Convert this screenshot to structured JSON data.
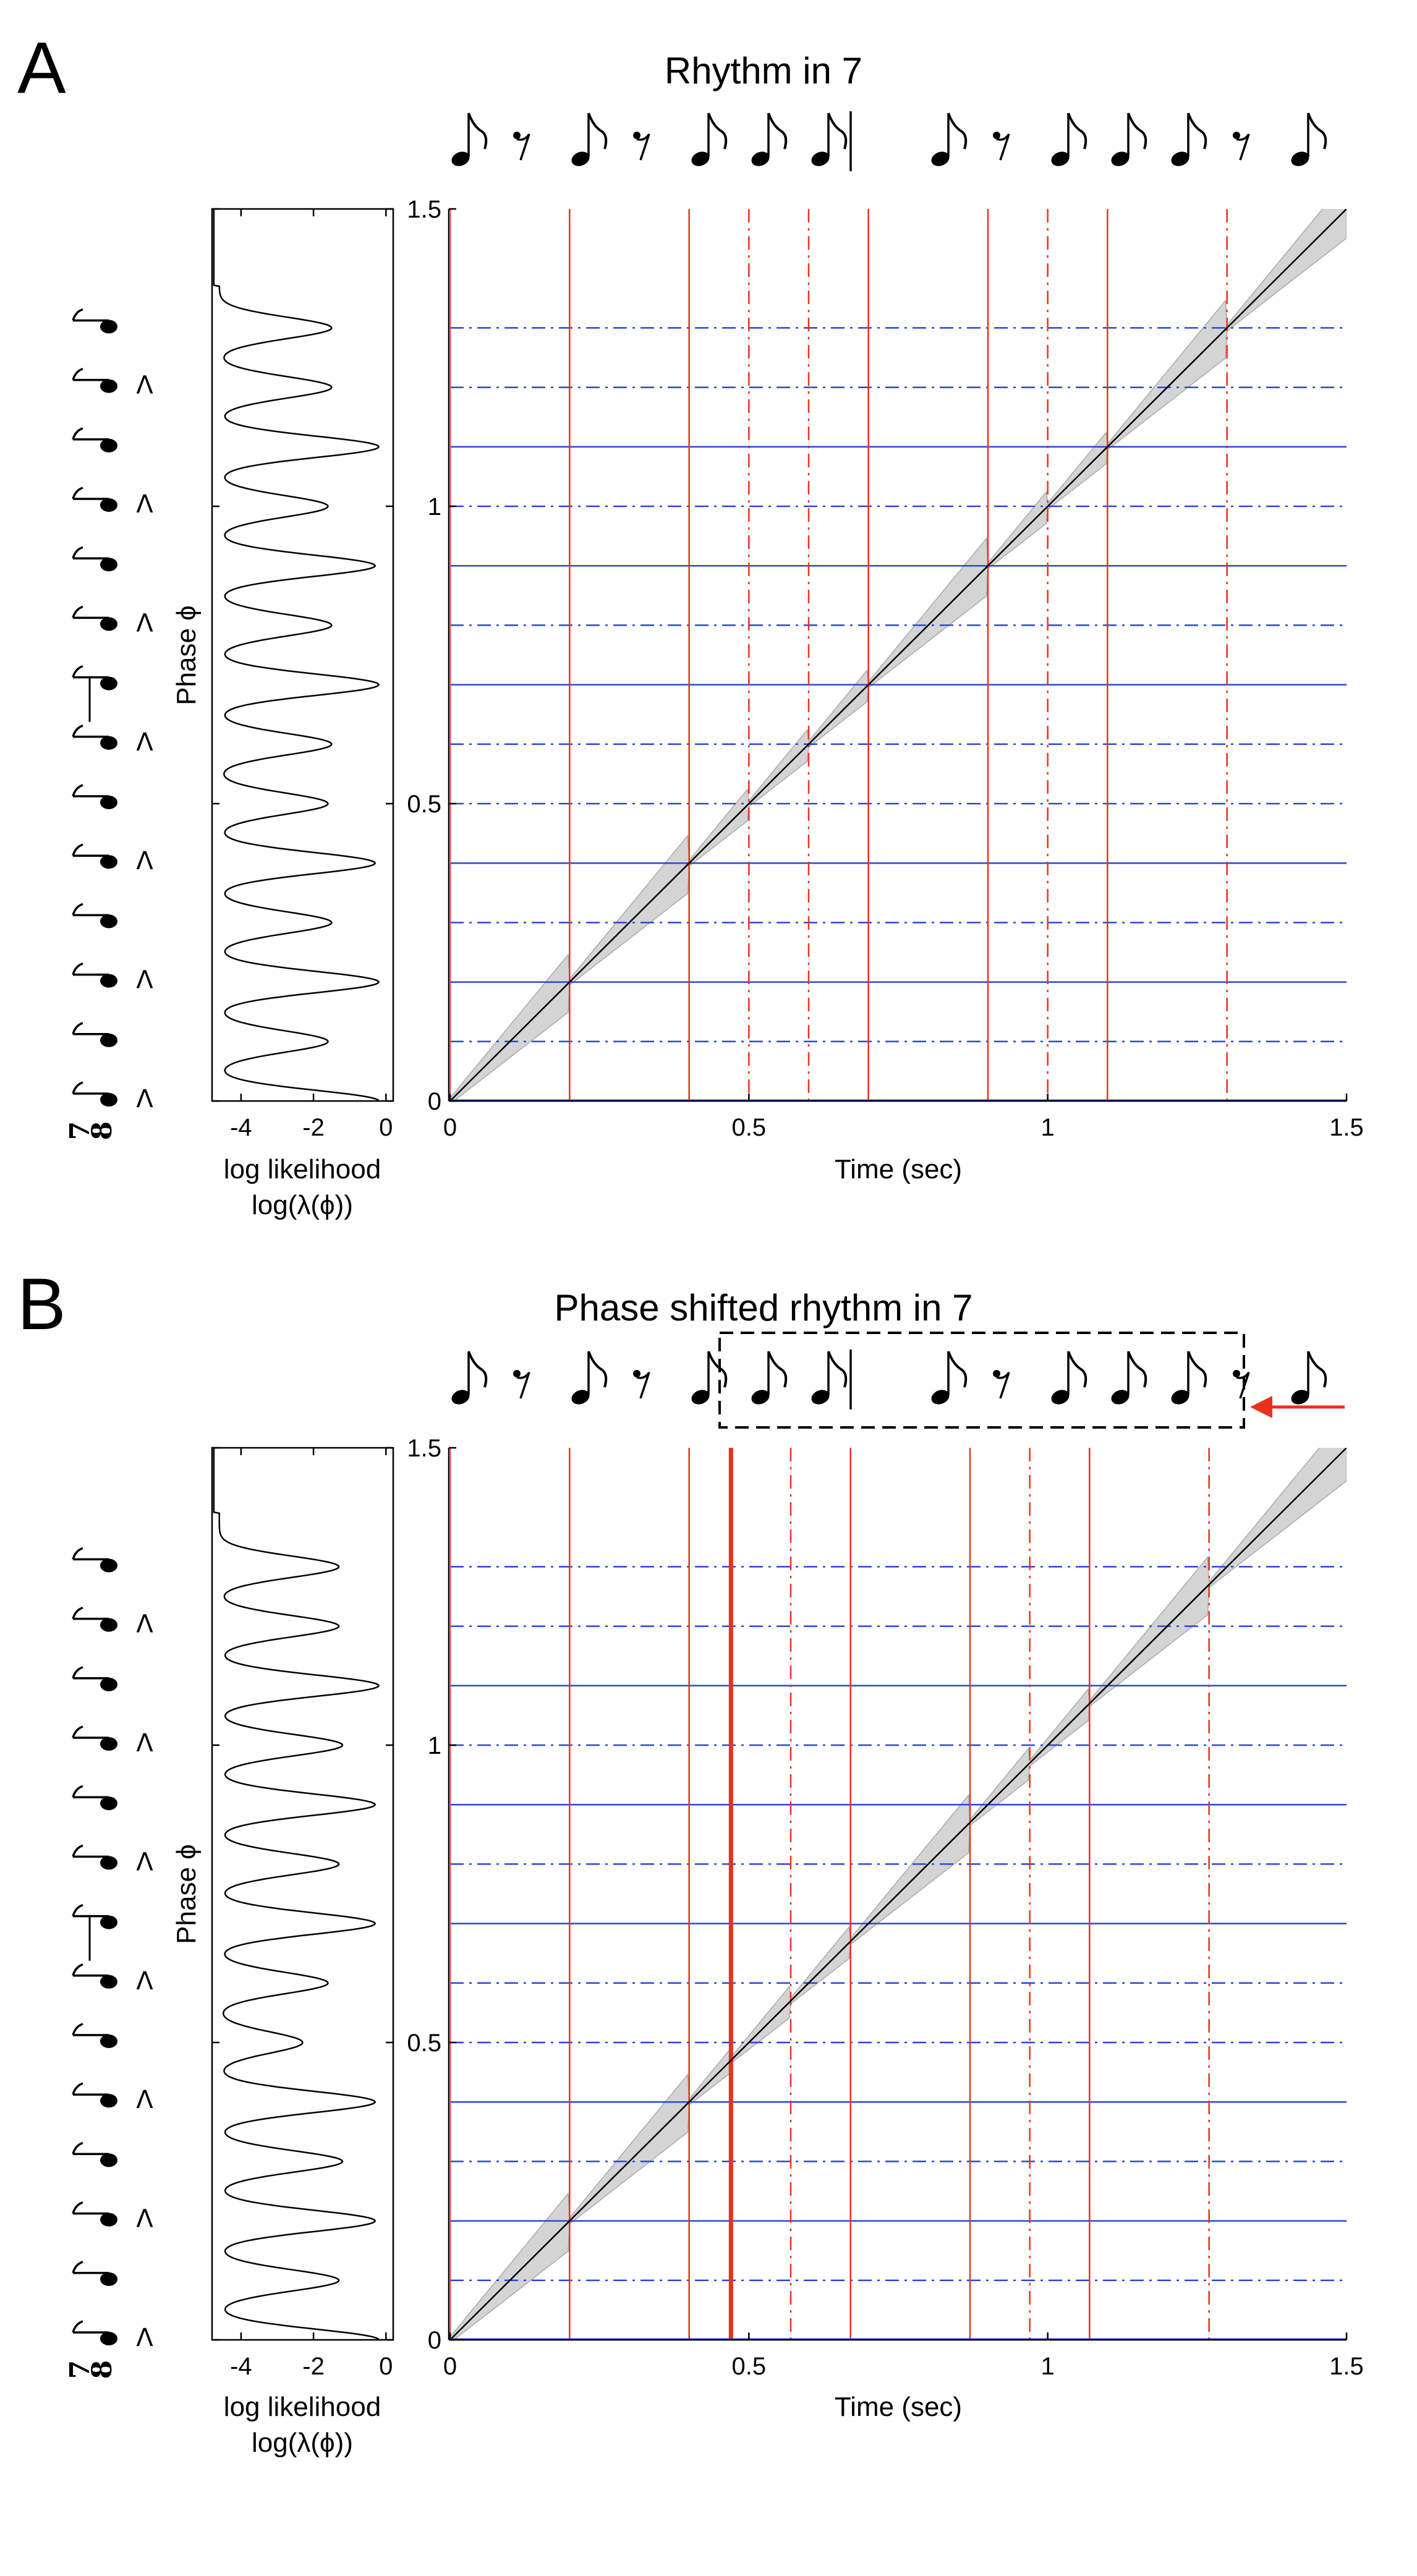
{
  "figure": {
    "panels": [
      {
        "letter": "A",
        "title": "Rhythm in 7",
        "notation": [
          "note",
          "rest",
          "note",
          "rest",
          "note",
          "note",
          "note",
          "bar",
          "note",
          "rest",
          "note",
          "note",
          "note",
          "rest",
          "note"
        ],
        "phase_side": {
          "time_signature": {
            "numerator": "7",
            "denominator": "8"
          },
          "accents": [
            true,
            false,
            true,
            false,
            true,
            false,
            true,
            false,
            true,
            false,
            true,
            false,
            true,
            false
          ]
        },
        "chart_data": [
          {
            "type": "line",
            "title": "",
            "xlabel": "log likelihood",
            "xlabel2": "log(λ(ϕ))",
            "ylabel": "Phase ϕ",
            "xlim": [
              -4.8,
              0.2
            ],
            "ylim": [
              0,
              1.5
            ],
            "xticks": [
              "-4",
              "-2",
              "0"
            ],
            "yticks": [
              "0",
              "0.5",
              "1",
              "1.5"
            ],
            "baseline": -4.6,
            "peak_phases": [
              0,
              0.1,
              0.2,
              0.3,
              0.4,
              0.5,
              0.6,
              0.7,
              0.8,
              0.9,
              1.0,
              1.1,
              1.2,
              1.3
            ],
            "peak_values": [
              -0.2,
              -1.6,
              -0.2,
              -1.5,
              -0.3,
              -1.6,
              -1.5,
              -0.2,
              -1.5,
              -0.3,
              -1.6,
              -0.2,
              -1.5,
              -1.5
            ],
            "peak_width": 0.018,
            "end_phase": 1.37
          },
          {
            "type": "line",
            "title": "",
            "xlabel": "Time (sec)",
            "ylabel": "",
            "xlim": [
              0,
              1.5
            ],
            "ylim": [
              0,
              1.5
            ],
            "xticks": [
              "0",
              "0.5",
              "1",
              "1.5"
            ],
            "yticks": [
              "0",
              "0.5",
              "1",
              "1.5"
            ],
            "onsets_solid": [
              0,
              0.2,
              0.4,
              0.7,
              0.9,
              1.1
            ],
            "onsets_dashed": [
              0.5,
              0.6,
              1.0,
              1.3
            ],
            "onsets_bold": [],
            "phase_solid": [
              0.2,
              0.4,
              0.7,
              0.9,
              1.1
            ],
            "phase_dashed": [
              0.1,
              0.3,
              0.5,
              0.6,
              0.8,
              1.0,
              1.2,
              1.3
            ],
            "colors": {
              "onset": "#e8321e",
              "phase": "#2a46d8",
              "band": "#d4d4d4",
              "band_edge": "#aaaaaa",
              "trend": "#000000"
            }
          }
        ]
      },
      {
        "letter": "B",
        "title": "Phase shifted rhythm in 7",
        "notation": [
          "note",
          "rest",
          "note",
          "rest",
          "note",
          "note",
          "note",
          "bar",
          "note",
          "rest",
          "note",
          "note",
          "note",
          "rest",
          "note"
        ],
        "phase_side": {
          "time_signature": {
            "numerator": "7",
            "denominator": "8"
          },
          "accents": [
            true,
            false,
            true,
            false,
            true,
            false,
            true,
            false,
            true,
            false,
            true,
            false,
            true,
            false
          ]
        },
        "chart_data": [
          {
            "type": "line",
            "title": "",
            "xlabel": "log likelihood",
            "xlabel2": "log(λ(ϕ))",
            "ylabel": "Phase ϕ",
            "xlim": [
              -4.8,
              0.2
            ],
            "ylim": [
              0,
              1.5
            ],
            "xticks": [
              "-4",
              "-2",
              "0"
            ],
            "yticks": [
              "0",
              "0.5",
              "1",
              "1.5"
            ],
            "baseline": -4.6,
            "peak_phases": [
              0,
              0.1,
              0.2,
              0.3,
              0.4,
              0.5,
              0.6,
              0.7,
              0.8,
              0.9,
              1.0,
              1.1,
              1.2,
              1.3
            ],
            "peak_values": [
              -0.2,
              -1.3,
              -0.3,
              -1.2,
              -0.3,
              -2.3,
              -1.6,
              -0.3,
              -1.3,
              -0.3,
              -1.2,
              -0.2,
              -1.3,
              -1.3
            ],
            "peak_width": 0.018,
            "end_phase": 1.39
          },
          {
            "type": "line",
            "title": "",
            "xlabel": "Time (sec)",
            "ylabel": "",
            "xlim": [
              0,
              1.5
            ],
            "ylim": [
              0,
              1.5
            ],
            "xticks": [
              "0",
              "0.5",
              "1",
              "1.5"
            ],
            "yticks": [
              "0",
              "0.5",
              "1",
              "1.5"
            ],
            "onsets_solid": [
              0,
              0.2,
              0.4,
              0.67,
              0.87,
              1.07
            ],
            "onsets_dashed": [
              0.57,
              0.97,
              1.27
            ],
            "onsets_bold": [
              0.47
            ],
            "phase_solid": [
              0.2,
              0.4,
              0.7,
              0.9,
              1.1
            ],
            "phase_dashed": [
              0.1,
              0.3,
              0.5,
              0.6,
              0.8,
              1.0,
              1.2,
              1.3
            ],
            "colors": {
              "onset": "#e8321e",
              "phase": "#2a46d8",
              "band": "#d4d4d4",
              "band_edge": "#aaaaaa",
              "trend": "#000000"
            }
          }
        ]
      }
    ]
  }
}
